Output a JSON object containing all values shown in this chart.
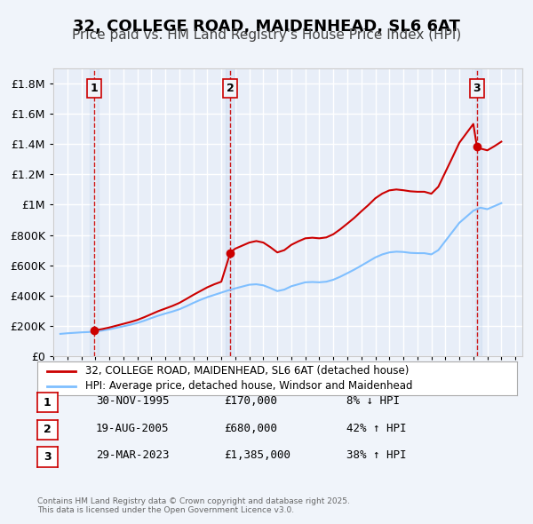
{
  "title": "32, COLLEGE ROAD, MAIDENHEAD, SL6 6AT",
  "subtitle": "Price paid vs. HM Land Registry's House Price Index (HPI)",
  "title_fontsize": 13,
  "subtitle_fontsize": 11,
  "background_color": "#f0f4fa",
  "plot_bg_color": "#e8eef8",
  "grid_color": "#ffffff",
  "ylabel": "",
  "ylim": [
    0,
    1900000
  ],
  "xlim_start": 1993.0,
  "xlim_end": 2026.5,
  "sale_line_color": "#cc0000",
  "hpi_line_color": "#7fbfff",
  "sale_marker_color": "#cc0000",
  "annotation_vline_color": "#cc0000",
  "annotation_bg_color": "#e8eef8",
  "sale_marker": "o",
  "sale_markersize": 5,
  "legend_entries": [
    "32, COLLEGE ROAD, MAIDENHEAD, SL6 6AT (detached house)",
    "HPI: Average price, detached house, Windsor and Maidenhead"
  ],
  "transactions": [
    {
      "num": 1,
      "date": "30-NOV-1995",
      "price": 170000,
      "pct": "8%",
      "dir": "↓",
      "x_year": 1995.917
    },
    {
      "num": 2,
      "date": "19-AUG-2005",
      "price": 680000,
      "pct": "42%",
      "dir": "↑",
      "x_year": 2005.633
    },
    {
      "num": 3,
      "date": "29-MAR-2023",
      "price": 1385000,
      "pct": "38%",
      "dir": "↑",
      "x_year": 2023.25
    }
  ],
  "footnote": "Contains HM Land Registry data © Crown copyright and database right 2025.\nThis data is licensed under the Open Government Licence v3.0.",
  "yticks": [
    0,
    200000,
    400000,
    600000,
    800000,
    1000000,
    1200000,
    1400000,
    1600000,
    1800000
  ],
  "ytick_labels": [
    "£0",
    "£200K",
    "£400K",
    "£600K",
    "£800K",
    "£1M",
    "£1.2M",
    "£1.4M",
    "£1.6M",
    "£1.8M"
  ],
  "hpi_data": {
    "years": [
      1993.5,
      1994.0,
      1994.5,
      1995.0,
      1995.5,
      1996.0,
      1996.5,
      1997.0,
      1997.5,
      1998.0,
      1998.5,
      1999.0,
      1999.5,
      2000.0,
      2000.5,
      2001.0,
      2001.5,
      2002.0,
      2002.5,
      2003.0,
      2003.5,
      2004.0,
      2004.5,
      2005.0,
      2005.5,
      2006.0,
      2006.5,
      2007.0,
      2007.5,
      2008.0,
      2008.5,
      2009.0,
      2009.5,
      2010.0,
      2010.5,
      2011.0,
      2011.5,
      2012.0,
      2012.5,
      2013.0,
      2013.5,
      2014.0,
      2014.5,
      2015.0,
      2015.5,
      2016.0,
      2016.5,
      2017.0,
      2017.5,
      2018.0,
      2018.5,
      2019.0,
      2019.5,
      2020.0,
      2020.5,
      2021.0,
      2021.5,
      2022.0,
      2022.5,
      2023.0,
      2023.5,
      2024.0,
      2024.5,
      2025.0
    ],
    "values": [
      148000,
      152000,
      155000,
      158000,
      160000,
      163000,
      170000,
      178000,
      188000,
      198000,
      208000,
      220000,
      235000,
      252000,
      268000,
      282000,
      295000,
      310000,
      330000,
      352000,
      372000,
      390000,
      405000,
      420000,
      435000,
      448000,
      460000,
      472000,
      475000,
      468000,
      450000,
      430000,
      440000,
      462000,
      475000,
      488000,
      490000,
      488000,
      492000,
      505000,
      525000,
      548000,
      572000,
      598000,
      625000,
      652000,
      672000,
      685000,
      690000,
      688000,
      682000,
      680000,
      680000,
      672000,
      700000,
      760000,
      820000,
      880000,
      920000,
      960000,
      980000,
      970000,
      990000,
      1010000
    ]
  },
  "sale_hpi_line_data": {
    "years": [
      1995.917,
      1996.0,
      1996.5,
      1997.0,
      1997.5,
      1998.0,
      1998.5,
      1999.0,
      1999.5,
      2000.0,
      2000.5,
      2001.0,
      2001.5,
      2002.0,
      2002.5,
      2003.0,
      2003.5,
      2004.0,
      2004.5,
      2005.0,
      2005.633,
      2005.7,
      2006.0,
      2006.5,
      2007.0,
      2007.5,
      2008.0,
      2008.5,
      2009.0,
      2009.5,
      2010.0,
      2010.5,
      2011.0,
      2011.5,
      2012.0,
      2012.5,
      2013.0,
      2013.5,
      2014.0,
      2014.5,
      2015.0,
      2015.5,
      2016.0,
      2016.5,
      2017.0,
      2017.5,
      2018.0,
      2018.5,
      2019.0,
      2019.5,
      2020.0,
      2020.5,
      2021.0,
      2021.5,
      2022.0,
      2022.5,
      2023.0,
      2023.25,
      2023.5,
      2024.0,
      2024.5,
      2025.0
    ],
    "values": [
      170000,
      172000,
      180000,
      190000,
      202000,
      214000,
      226000,
      240000,
      258000,
      278000,
      298000,
      315000,
      332000,
      352000,
      378000,
      405000,
      430000,
      455000,
      475000,
      492000,
      680000,
      690000,
      710000,
      730000,
      750000,
      760000,
      750000,
      720000,
      685000,
      700000,
      735000,
      758000,
      778000,
      782000,
      778000,
      784000,
      805000,
      838000,
      875000,
      913000,
      956000,
      997000,
      1042000,
      1073000,
      1094000,
      1100000,
      1095000,
      1088000,
      1085000,
      1085000,
      1072000,
      1118000,
      1214000,
      1310000,
      1408000,
      1470000,
      1532000,
      1385000,
      1370000,
      1358000,
      1385000,
      1415000
    ]
  }
}
